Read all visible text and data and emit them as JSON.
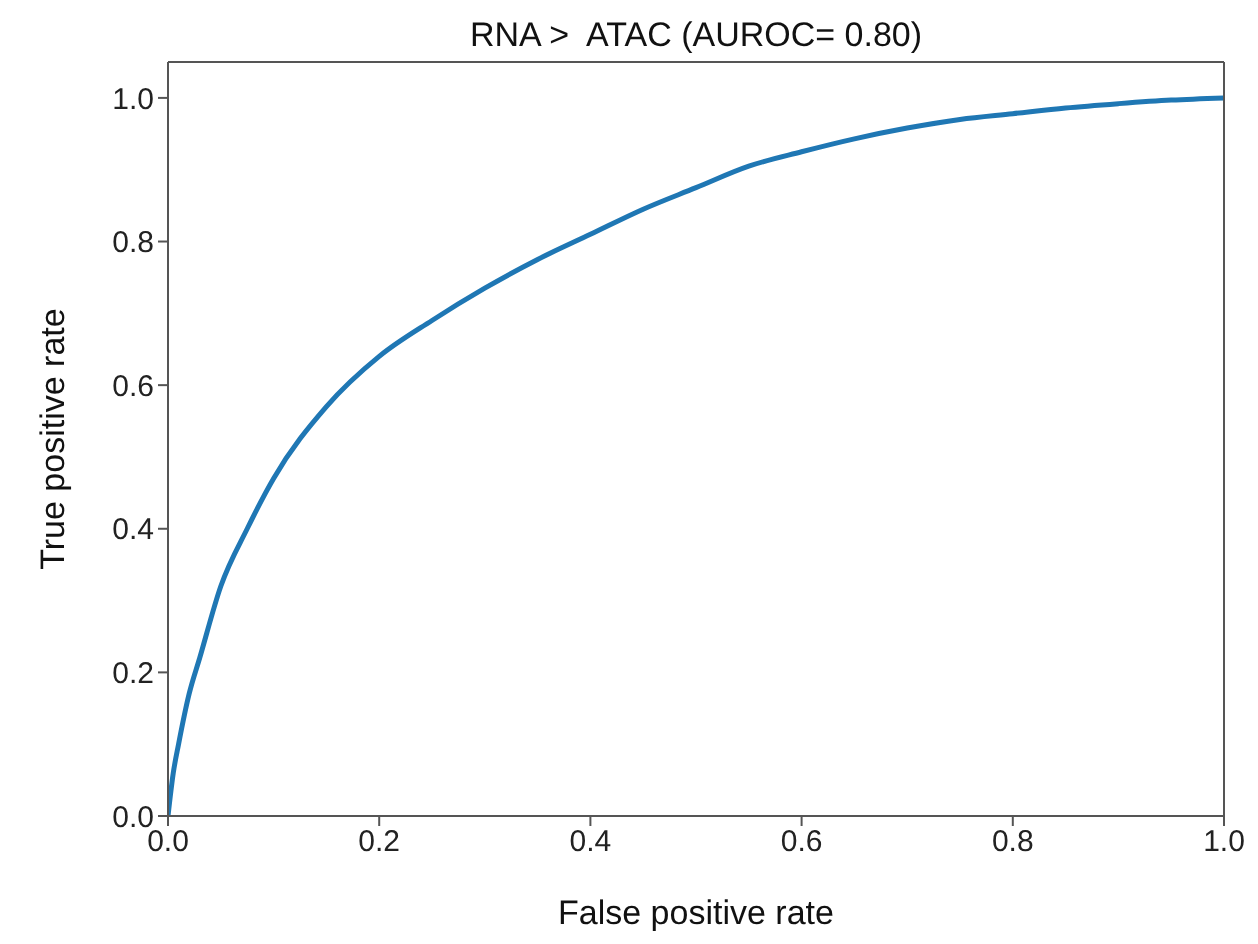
{
  "chart_data": {
    "type": "line",
    "title": "RNA >  ATAC (AUROC= 0.80)",
    "xlabel": "False positive rate",
    "ylabel": "True positive rate",
    "x": [
      0,
      0.005,
      0.01,
      0.02,
      0.03,
      0.05,
      0.075,
      0.1,
      0.15,
      0.2,
      0.25,
      0.3,
      0.35,
      0.4,
      0.45,
      0.5,
      0.55,
      0.6,
      0.65,
      0.7,
      0.75,
      0.8,
      0.85,
      0.9,
      0.95,
      1
    ],
    "series": [
      {
        "color": "#1f77b4",
        "values": [
          0,
          0.06,
          0.1,
          0.17,
          0.22,
          0.32,
          0.4,
          0.47,
          0.57,
          0.64,
          0.69,
          0.735,
          0.775,
          0.81,
          0.845,
          0.875,
          0.905,
          0.925,
          0.943,
          0.958,
          0.97,
          0.978,
          0.986,
          0.992,
          0.997,
          1
        ]
      }
    ],
    "xlim": [
      0,
      1
    ],
    "ylim": [
      0,
      1.05
    ],
    "xticks": [
      {
        "value": 0,
        "label": "0.0"
      },
      {
        "value": 0.2,
        "label": "0.2"
      },
      {
        "value": 0.4,
        "label": "0.4"
      },
      {
        "value": 0.6,
        "label": "0.6"
      },
      {
        "value": 0.8,
        "label": "0.8"
      },
      {
        "value": 1,
        "label": "1.0"
      }
    ],
    "yticks": [
      {
        "value": 0,
        "label": "0.0"
      },
      {
        "value": 0.2,
        "label": "0.2"
      },
      {
        "value": 0.4,
        "label": "0.4"
      },
      {
        "value": 0.6,
        "label": "0.6"
      },
      {
        "value": 0.8,
        "label": "0.8"
      },
      {
        "value": 1,
        "label": "1.0"
      }
    ],
    "marker": "none",
    "line_style": "solid"
  }
}
